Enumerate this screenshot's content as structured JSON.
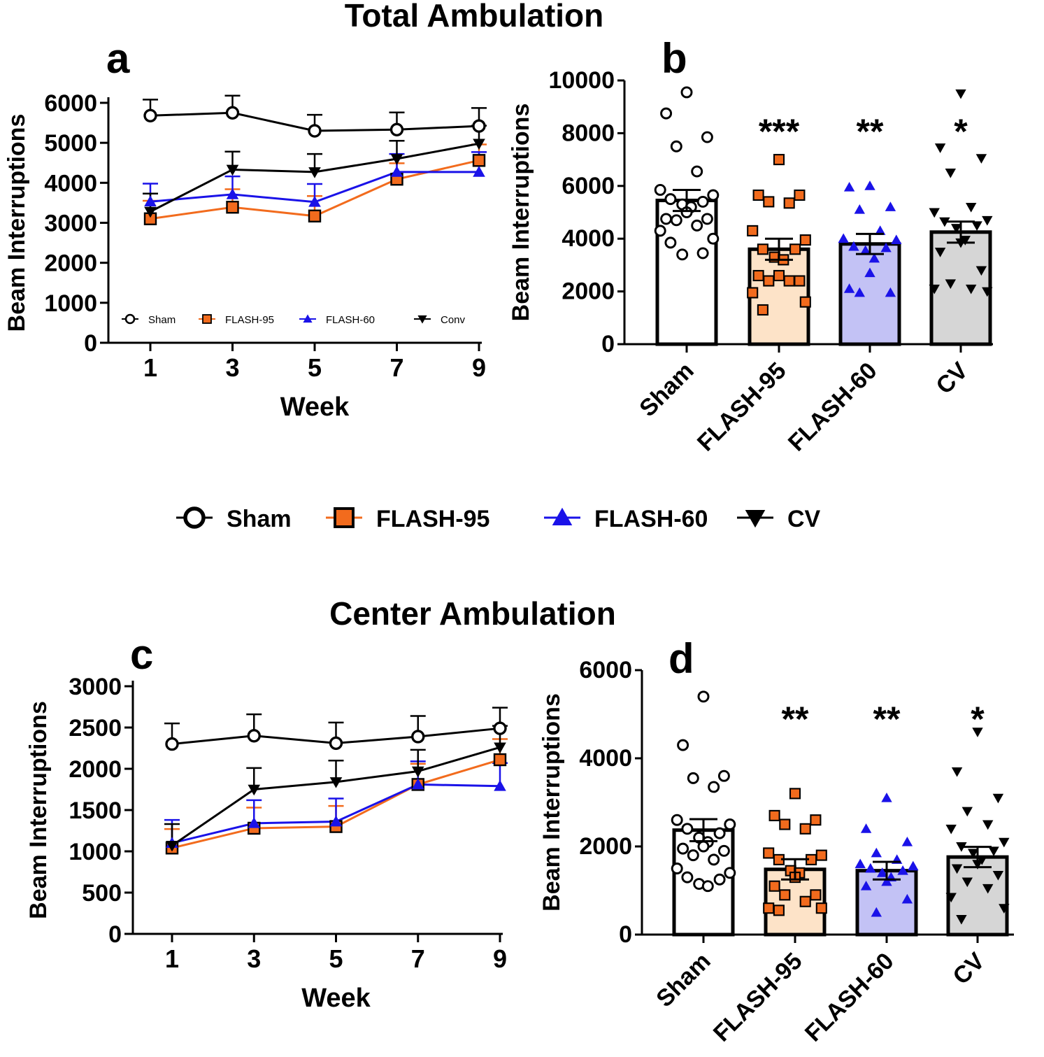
{
  "figure": {
    "titles": {
      "total": "Total Ambulation",
      "center": "Center Ambulation"
    },
    "panel_labels": [
      "a",
      "b",
      "c",
      "d"
    ],
    "legend": [
      {
        "name": "Sham",
        "marker": "circle-open",
        "color": "#000000"
      },
      {
        "name": "FLASH-95",
        "marker": "square",
        "color": "#f26b1d"
      },
      {
        "name": "FLASH-60",
        "marker": "triangle-up",
        "color": "#1a12e8"
      },
      {
        "name": "CV",
        "marker": "triangle-down",
        "color": "#000000"
      }
    ]
  },
  "chart_data": [
    {
      "panel": "a",
      "type": "line",
      "title": "",
      "xlabel": "Week",
      "ylabel": "Beam Interruptions",
      "x": [
        1,
        3,
        5,
        7,
        9
      ],
      "ylim": [
        0,
        6000
      ],
      "yticks": [
        0,
        1000,
        2000,
        3000,
        4000,
        5000,
        6000
      ],
      "legend": [
        "Sham",
        "FLASH-95",
        "FLASH-60",
        "Conv"
      ],
      "series": [
        {
          "name": "Sham",
          "values": [
            5680,
            5750,
            5300,
            5330,
            5420
          ],
          "err": [
            400,
            430,
            400,
            430,
            450
          ]
        },
        {
          "name": "FLASH-95",
          "values": [
            3100,
            3390,
            3170,
            4090,
            4560
          ],
          "err": [
            450,
            450,
            500,
            400,
            400
          ]
        },
        {
          "name": "FLASH-60",
          "values": [
            3530,
            3710,
            3520,
            4270,
            4270
          ],
          "err": [
            450,
            450,
            450,
            450,
            500
          ]
        },
        {
          "name": "Conv",
          "values": [
            3280,
            4330,
            4270,
            4600,
            4980
          ],
          "err": [
            450,
            450,
            450,
            450,
            450
          ]
        }
      ]
    },
    {
      "panel": "b",
      "type": "bar",
      "ylabel": "Beam Interruptions",
      "categories": [
        "Sham",
        "FLASH-95",
        "FLASH-60",
        "CV"
      ],
      "ylim": [
        0,
        10000
      ],
      "yticks": [
        0,
        2000,
        4000,
        6000,
        8000,
        10000
      ],
      "values": [
        5450,
        3600,
        3800,
        4250
      ],
      "err": [
        400,
        400,
        380,
        400
      ],
      "significance": [
        "",
        "***",
        "**",
        "*"
      ],
      "points": [
        [
          9550,
          8750,
          7850,
          7500,
          6550,
          5850,
          5650,
          5500,
          5400,
          5300,
          5200,
          5000,
          4750,
          4750,
          4700,
          4500,
          4300,
          4000,
          3850,
          3450,
          3400
        ],
        [
          7000,
          5650,
          5650,
          5400,
          5350,
          4300,
          3950,
          3600,
          3600,
          3300,
          3200,
          2600,
          2600,
          2400,
          2400,
          2400,
          1950,
          1600,
          1300
        ],
        [
          6000,
          5950,
          5200,
          5100,
          4300,
          4000,
          3950,
          3700,
          3650,
          3550,
          3250,
          2700,
          2100,
          1950,
          1950
        ],
        [
          9500,
          7450,
          7050,
          6500,
          5200,
          5000,
          4700,
          4650,
          4500,
          4400,
          3950,
          3850,
          3500,
          2800,
          2300,
          2100,
          2100,
          2000
        ]
      ]
    },
    {
      "panel": "c",
      "type": "line",
      "title": "",
      "xlabel": "Week",
      "ylabel": "Beam Interruptions",
      "x": [
        1,
        3,
        5,
        7,
        9
      ],
      "ylim": [
        0,
        3000
      ],
      "yticks": [
        0,
        500,
        1000,
        1500,
        2000,
        2500,
        3000
      ],
      "series": [
        {
          "name": "Sham",
          "values": [
            2300,
            2400,
            2310,
            2390,
            2490
          ],
          "err": [
            250,
            260,
            250,
            250,
            250
          ]
        },
        {
          "name": "FLASH-95",
          "values": [
            1040,
            1280,
            1300,
            1810,
            2110
          ],
          "err": [
            230,
            250,
            250,
            250,
            250
          ]
        },
        {
          "name": "FLASH-60",
          "values": [
            1100,
            1340,
            1360,
            1810,
            1790
          ],
          "err": [
            280,
            280,
            280,
            280,
            280
          ]
        },
        {
          "name": "CV",
          "values": [
            1070,
            1750,
            1840,
            1970,
            2260
          ],
          "err": [
            260,
            260,
            260,
            260,
            260
          ]
        }
      ]
    },
    {
      "panel": "d",
      "type": "bar",
      "ylabel": "Beam Interruptions",
      "categories": [
        "Sham",
        "FLASH-95",
        "FLASH-60",
        "CV"
      ],
      "ylim": [
        0,
        6000
      ],
      "yticks": [
        0,
        2000,
        4000,
        6000
      ],
      "values": [
        2370,
        1480,
        1450,
        1760
      ],
      "err": [
        250,
        230,
        200,
        230
      ],
      "significance": [
        "",
        "**",
        "**",
        "*"
      ],
      "points": [
        [
          5400,
          4300,
          3600,
          3550,
          3350,
          2600,
          2500,
          2400,
          2300,
          2200,
          2100,
          2000,
          1950,
          1900,
          1800,
          1700,
          1500,
          1400,
          1300,
          1250,
          1150,
          1100
        ],
        [
          3200,
          2700,
          2600,
          2500,
          2400,
          1850,
          1800,
          1700,
          1700,
          1450,
          1400,
          1300,
          1100,
          900,
          900,
          750,
          600,
          600,
          550
        ],
        [
          3100,
          2400,
          2100,
          1850,
          1700,
          1600,
          1550,
          1500,
          1450,
          1400,
          1300,
          1200,
          1100,
          800,
          500
        ],
        [
          4600,
          3700,
          3100,
          2800,
          2500,
          2400,
          2100,
          2000,
          1900,
          1850,
          1700,
          1600,
          1500,
          1350,
          1200,
          1050,
          850,
          600,
          350
        ]
      ]
    }
  ]
}
